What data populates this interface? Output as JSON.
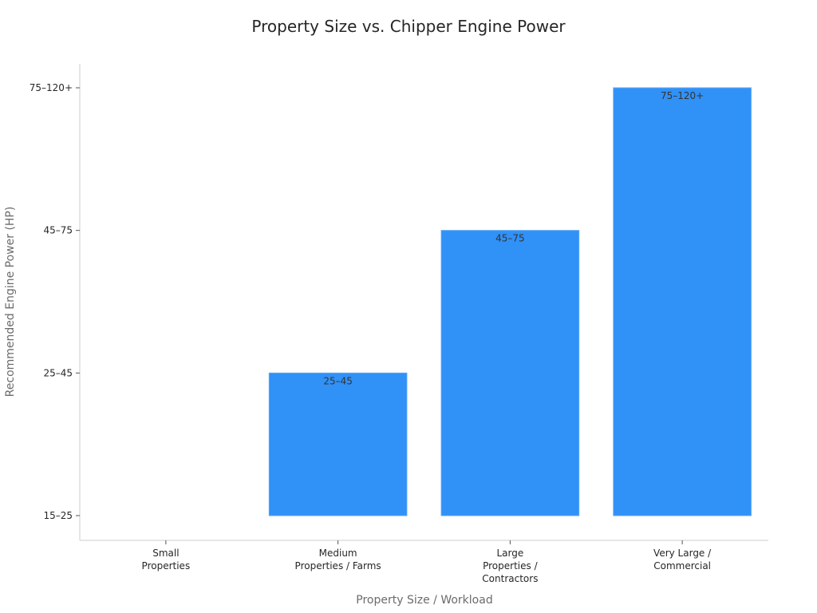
{
  "chart_data": {
    "type": "bar",
    "title": "Property Size vs. Chipper Engine Power",
    "xlabel": "Property Size / Workload",
    "ylabel": "Recommended Engine Power (HP)",
    "categories": [
      [
        "Small",
        "Properties"
      ],
      [
        "Medium",
        "Properties / Farms"
      ],
      [
        "Large",
        "Properties /",
        "Contractors"
      ],
      [
        "Very Large /",
        "Commercial"
      ]
    ],
    "y_ticks": [
      "15–25",
      "25–45",
      "45–75",
      "75–120+"
    ],
    "values": [
      "15–25",
      "25–45",
      "45–75",
      "75–120+"
    ],
    "data_labels": [
      "",
      "25–45",
      "45–75",
      "75–120+"
    ],
    "bar_color": "#3091f7",
    "grid": false,
    "legend": "none"
  }
}
